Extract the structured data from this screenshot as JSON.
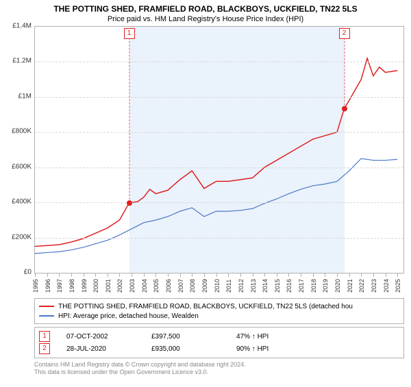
{
  "title": "THE POTTING SHED, FRAMFIELD ROAD, BLACKBOYS, UCKFIELD, TN22 5LS",
  "subtitle": "Price paid vs. HM Land Registry's House Price Index (HPI)",
  "chart": {
    "type": "line",
    "background_color": "#ffffff",
    "zone_color": "#eaf2fb",
    "grid_color": "#d8d8d8",
    "border_color": "#b0b0b0",
    "x_years": [
      1995,
      1996,
      1997,
      1998,
      1999,
      2000,
      2001,
      2002,
      2003,
      2004,
      2005,
      2006,
      2007,
      2008,
      2009,
      2010,
      2011,
      2012,
      2013,
      2014,
      2015,
      2016,
      2017,
      2018,
      2019,
      2020,
      2021,
      2022,
      2023,
      2024,
      2025
    ],
    "x_min_year": 1995,
    "x_max_year": 2025.5,
    "zone_start_year": 2002.8,
    "zone_end_year": 2020.6,
    "ylim": [
      0,
      1400000
    ],
    "ytick_step": 200000,
    "ytick_labels": [
      "£0",
      "£200K",
      "£400K",
      "£600K",
      "£800K",
      "£1M",
      "£1.2M",
      "£1.4M"
    ],
    "series": [
      {
        "name": "property_price",
        "label": "THE POTTING SHED, FRAMFIELD ROAD, BLACKBOYS, UCKFIELD, TN22 5LS (detached hou",
        "color": "#e02020",
        "width": 1.5,
        "points": [
          [
            1995.0,
            150000
          ],
          [
            1996.0,
            155000
          ],
          [
            1997.0,
            160000
          ],
          [
            1998.0,
            175000
          ],
          [
            1999.0,
            195000
          ],
          [
            2000.0,
            225000
          ],
          [
            2001.0,
            255000
          ],
          [
            2002.0,
            300000
          ],
          [
            2002.8,
            397500
          ],
          [
            2003.5,
            405000
          ],
          [
            2004.0,
            430000
          ],
          [
            2004.5,
            475000
          ],
          [
            2005.0,
            450000
          ],
          [
            2006.0,
            470000
          ],
          [
            2007.0,
            530000
          ],
          [
            2008.0,
            580000
          ],
          [
            2009.0,
            480000
          ],
          [
            2010.0,
            520000
          ],
          [
            2011.0,
            520000
          ],
          [
            2012.0,
            530000
          ],
          [
            2013.0,
            540000
          ],
          [
            2014.0,
            600000
          ],
          [
            2015.0,
            640000
          ],
          [
            2016.0,
            680000
          ],
          [
            2017.0,
            720000
          ],
          [
            2018.0,
            760000
          ],
          [
            2019.0,
            780000
          ],
          [
            2020.0,
            800000
          ],
          [
            2020.6,
            935000
          ],
          [
            2021.0,
            980000
          ],
          [
            2022.0,
            1100000
          ],
          [
            2022.5,
            1220000
          ],
          [
            2023.0,
            1120000
          ],
          [
            2023.5,
            1170000
          ],
          [
            2024.0,
            1140000
          ],
          [
            2025.0,
            1150000
          ]
        ]
      },
      {
        "name": "hpi",
        "label": "HPI: Average price, detached house, Wealden",
        "color": "#4a78c8",
        "width": 1.2,
        "points": [
          [
            1995.0,
            110000
          ],
          [
            1996.0,
            115000
          ],
          [
            1997.0,
            120000
          ],
          [
            1998.0,
            130000
          ],
          [
            1999.0,
            145000
          ],
          [
            2000.0,
            165000
          ],
          [
            2001.0,
            185000
          ],
          [
            2002.0,
            215000
          ],
          [
            2003.0,
            250000
          ],
          [
            2004.0,
            285000
          ],
          [
            2005.0,
            300000
          ],
          [
            2006.0,
            320000
          ],
          [
            2007.0,
            350000
          ],
          [
            2008.0,
            370000
          ],
          [
            2009.0,
            320000
          ],
          [
            2010.0,
            350000
          ],
          [
            2011.0,
            350000
          ],
          [
            2012.0,
            355000
          ],
          [
            2013.0,
            365000
          ],
          [
            2014.0,
            395000
          ],
          [
            2015.0,
            420000
          ],
          [
            2016.0,
            450000
          ],
          [
            2017.0,
            475000
          ],
          [
            2018.0,
            495000
          ],
          [
            2019.0,
            505000
          ],
          [
            2020.0,
            520000
          ],
          [
            2021.0,
            580000
          ],
          [
            2022.0,
            650000
          ],
          [
            2023.0,
            640000
          ],
          [
            2024.0,
            640000
          ],
          [
            2025.0,
            645000
          ]
        ]
      }
    ],
    "markers": [
      {
        "id": "1",
        "year": 2002.8,
        "value": 397500,
        "color": "#e02020"
      },
      {
        "id": "2",
        "year": 2020.6,
        "value": 935000,
        "color": "#e02020"
      }
    ],
    "x_label_fontsize": 9,
    "y_label_fontsize": 10
  },
  "legend": {
    "items": [
      {
        "color": "#e02020",
        "label": "THE POTTING SHED, FRAMFIELD ROAD, BLACKBOYS, UCKFIELD, TN22 5LS (detached hou"
      },
      {
        "color": "#4a78c8",
        "label": "HPI: Average price, detached house, Wealden"
      }
    ]
  },
  "transactions": {
    "rows": [
      {
        "id": "1",
        "date": "07-OCT-2002",
        "price": "£397,500",
        "delta": "47% ↑ HPI"
      },
      {
        "id": "2",
        "date": "28-JUL-2020",
        "price": "£935,000",
        "delta": "90% ↑ HPI"
      }
    ]
  },
  "footer": {
    "line1": "Contains HM Land Registry data © Crown copyright and database right 2024.",
    "line2": "This data is licensed under the Open Government Licence v3.0."
  }
}
